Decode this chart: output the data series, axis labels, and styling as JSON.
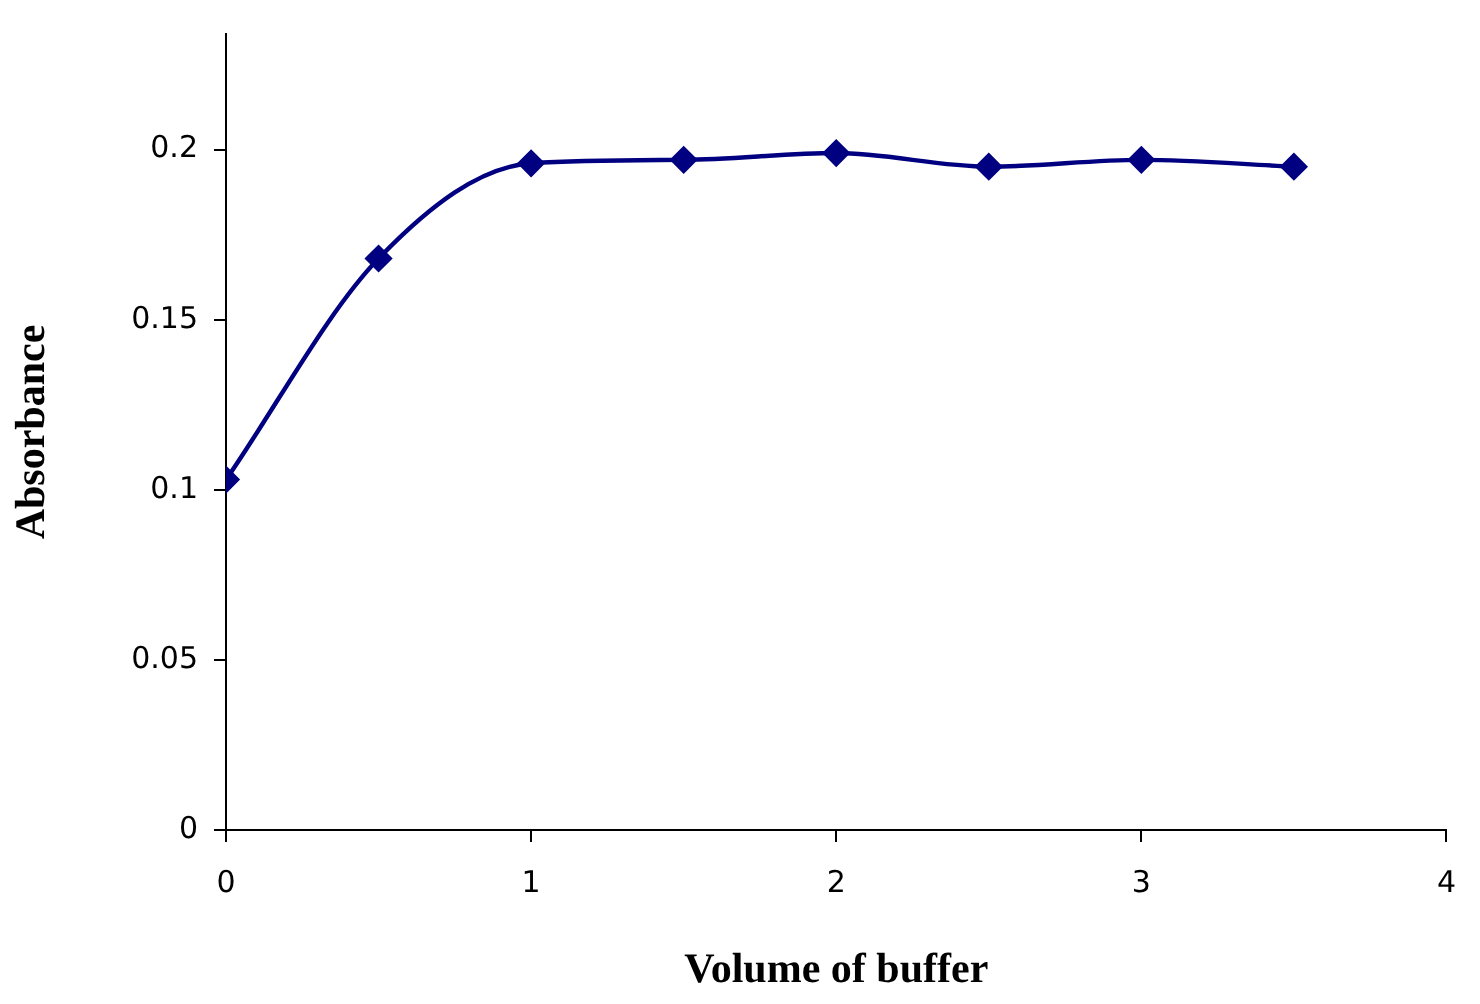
{
  "chart_data": {
    "type": "line",
    "xlabel": "Volume of buffer",
    "ylabel": "Absorbance",
    "x": [
      0,
      0.5,
      1,
      1.5,
      2,
      2.5,
      3,
      3.5
    ],
    "series": [
      {
        "color": "#000080",
        "values": [
          0.103,
          0.168,
          0.196,
          0.197,
          0.199,
          0.195,
          0.197,
          0.195
        ]
      }
    ],
    "xlim": [
      0,
      4
    ],
    "xticks": [
      0,
      1,
      2,
      3,
      4
    ],
    "ylim": [
      0,
      0.234
    ],
    "yticks": [
      0,
      0.05,
      0.1,
      0.15,
      0.2
    ],
    "grid": false,
    "legend": false,
    "marker": "diamond",
    "line_style": "solid"
  }
}
